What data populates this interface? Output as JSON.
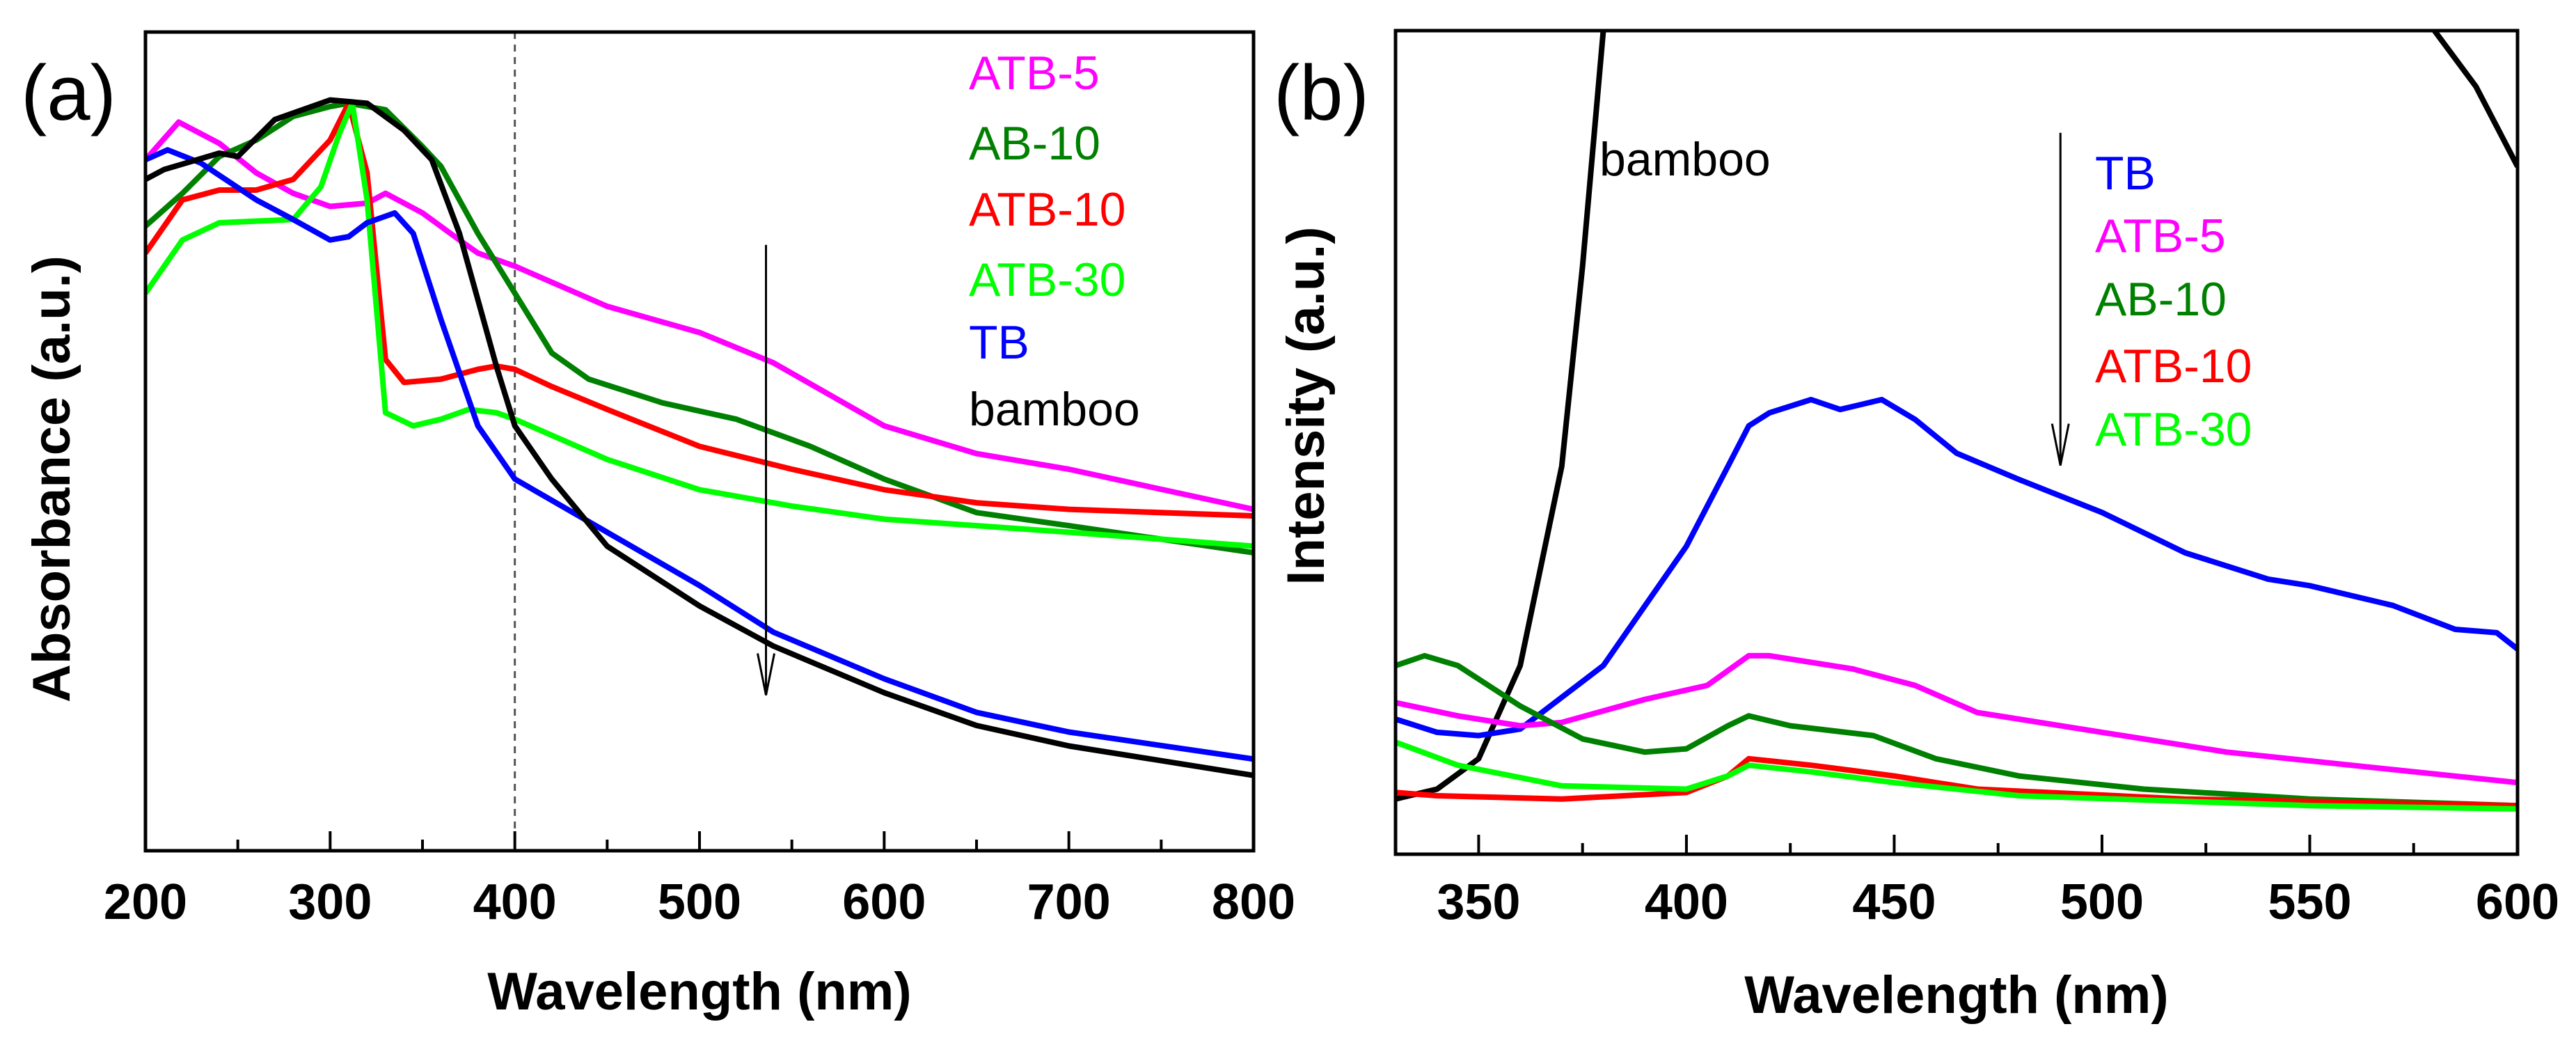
{
  "chart_data": [
    {
      "type": "line",
      "panel_label": "(a)",
      "xlabel": "Wavelength (nm)",
      "ylabel": "Absorbance (a.u.)",
      "xlim": [
        200,
        800
      ],
      "ylim": [
        0,
        100
      ],
      "xticks": [
        "200",
        "300",
        "400",
        "500",
        "600",
        "700",
        "800"
      ],
      "grid": false,
      "reference_line_x": 400,
      "arrow": {
        "x": 536,
        "y_from": 74,
        "y_to": 19
      },
      "legend_placement": "top-right",
      "series": [
        {
          "name": "ATB-5",
          "color": "#ff00ff",
          "x": [
            200,
            218,
            240,
            260,
            280,
            300,
            320,
            330,
            350,
            370,
            380,
            400,
            450,
            500,
            540,
            600,
            650,
            700,
            800
          ],
          "y": [
            84.4,
            89,
            86.4,
            82.8,
            80.3,
            78.7,
            79.1,
            80.3,
            77.9,
            74.6,
            73,
            71.4,
            66.5,
            63.3,
            59.6,
            51.9,
            48.5,
            46.6,
            41.7
          ]
        },
        {
          "name": "AB-10",
          "color": "#008000",
          "x": [
            200,
            220,
            240,
            260,
            280,
            300,
            310,
            330,
            350,
            360,
            380,
            400,
            420,
            440,
            480,
            520,
            560,
            600,
            650,
            700,
            800
          ],
          "y": [
            76.3,
            80.3,
            84.8,
            86.8,
            89.7,
            90.9,
            91.3,
            90.5,
            86,
            83.6,
            75.4,
            68.1,
            60.8,
            57.6,
            54.7,
            52.7,
            49.4,
            45.4,
            41.3,
            39.7,
            36.4
          ]
        },
        {
          "name": "ATB-10",
          "color": "#ff0000",
          "x": [
            200,
            220,
            240,
            260,
            280,
            300,
            310,
            320,
            330,
            340,
            360,
            380,
            390,
            400,
            420,
            450,
            500,
            550,
            600,
            650,
            700,
            800
          ],
          "y": [
            73,
            79.5,
            80.7,
            80.7,
            82,
            86.8,
            91.3,
            82.8,
            60,
            57.2,
            57.6,
            58.8,
            59.2,
            58.8,
            56.7,
            53.9,
            49.4,
            46.6,
            44.1,
            42.5,
            41.7,
            40.9
          ]
        },
        {
          "name": "ATB-30",
          "color": "#00ff00",
          "x": [
            200,
            220,
            240,
            280,
            295,
            305,
            312,
            320,
            330,
            345,
            360,
            375,
            390,
            400,
            450,
            500,
            550,
            600,
            700,
            800
          ],
          "y": [
            68.1,
            74.6,
            76.7,
            77.1,
            81.1,
            87.6,
            91.3,
            79.5,
            53.5,
            51.9,
            52.7,
            53.9,
            53.5,
            52.7,
            47.8,
            44.1,
            42.1,
            40.5,
            38.9,
            37.2
          ]
        },
        {
          "name": "TB",
          "color": "#0000ff",
          "x": [
            200,
            212,
            230,
            260,
            280,
            300,
            310,
            320,
            335,
            345,
            360,
            380,
            400,
            450,
            500,
            540,
            600,
            650,
            700,
            800
          ],
          "y": [
            84.4,
            85.6,
            84,
            79.5,
            77.1,
            74.6,
            75,
            76.7,
            77.9,
            75.4,
            64.9,
            51.9,
            45.4,
            38.9,
            32.4,
            26.7,
            21,
            16.9,
            14.5,
            11.2
          ]
        },
        {
          "name": "bamboo",
          "color": "#000000",
          "x": [
            200,
            210,
            240,
            250,
            270,
            300,
            320,
            340,
            355,
            370,
            390,
            400,
            420,
            450,
            500,
            540,
            600,
            650,
            700,
            800
          ],
          "y": [
            82,
            83.2,
            85.2,
            84.8,
            89.3,
            91.7,
            91.3,
            88,
            84.4,
            75.4,
            59.2,
            51.9,
            45.4,
            37.2,
            29.9,
            25,
            19.3,
            15.3,
            12.8,
            9.2
          ]
        }
      ]
    },
    {
      "type": "line",
      "panel_label": "(b)",
      "xlabel": "Wavelength (nm)",
      "ylabel": "Intensity (a.u.)",
      "xlim": [
        330,
        600
      ],
      "ylim": [
        0,
        100
      ],
      "xticks": [
        "350",
        "400",
        "450",
        "500",
        "550",
        "600"
      ],
      "grid": false,
      "arrow": {
        "x": 490,
        "y_from": 87.6,
        "y_to": 47.2
      },
      "bamboo_label": "bamboo",
      "legend_placement": "top-right",
      "series": [
        {
          "name": "bamboo",
          "color": "#000000",
          "x": [
            330,
            340,
            350,
            360,
            370,
            375,
            380,
            384
          ],
          "y": [
            6.7,
            7.9,
            11.6,
            22.9,
            47.1,
            71.4,
            100,
            115
          ]
        },
        {
          "name": "bamboo-tail",
          "color": "#000000",
          "x": [
            578,
            580,
            590,
            600
          ],
          "y": [
            105,
            100,
            93.2,
            83.5
          ]
        },
        {
          "name": "TB",
          "color": "#0000ff",
          "x": [
            330,
            340,
            350,
            360,
            380,
            400,
            410,
            415,
            420,
            430,
            437,
            447,
            455,
            465,
            480,
            500,
            520,
            540,
            550,
            570,
            585,
            595,
            600
          ],
          "y": [
            16.4,
            14.8,
            14.4,
            15.2,
            22.9,
            37.4,
            47.1,
            52,
            53.6,
            55.2,
            54,
            55.2,
            52.8,
            48.7,
            45.5,
            41.5,
            36.6,
            33.4,
            32.6,
            30.2,
            27.3,
            26.9,
            24.9
          ]
        },
        {
          "name": "ATB-5",
          "color": "#ff00ff",
          "x": [
            330,
            345,
            360,
            370,
            390,
            405,
            415,
            420,
            440,
            455,
            470,
            500,
            530,
            560,
            600
          ],
          "y": [
            18.4,
            16.8,
            15.6,
            16,
            18.8,
            20.5,
            24.1,
            24.1,
            22.5,
            20.5,
            17.2,
            14.8,
            12.4,
            10.8,
            8.7
          ]
        },
        {
          "name": "AB-10",
          "color": "#008000",
          "x": [
            330,
            337,
            345,
            360,
            375,
            390,
            400,
            410,
            415,
            425,
            445,
            460,
            480,
            510,
            550,
            600
          ],
          "y": [
            22.9,
            24.1,
            22.9,
            18,
            14,
            12.4,
            12.8,
            15.6,
            16.8,
            15.6,
            14.4,
            11.6,
            9.5,
            7.9,
            6.7,
            5.9
          ]
        },
        {
          "name": "ATB-10",
          "color": "#ff0000",
          "x": [
            330,
            340,
            370,
            400,
            410,
            415,
            430,
            450,
            470,
            520,
            600
          ],
          "y": [
            7.5,
            7.1,
            6.7,
            7.5,
            9.5,
            11.6,
            10.8,
            9.5,
            7.9,
            6.7,
            5.9
          ]
        },
        {
          "name": "ATB-30",
          "color": "#00ff00",
          "x": [
            330,
            345,
            370,
            400,
            410,
            415,
            430,
            450,
            480,
            550,
            600
          ],
          "y": [
            13.6,
            10.8,
            8.3,
            7.9,
            9.5,
            10.8,
            10,
            8.7,
            7.1,
            5.9,
            5.5
          ]
        }
      ],
      "legend": [
        "TB",
        "ATB-5",
        "AB-10",
        "ATB-10",
        "ATB-30"
      ]
    }
  ],
  "legend_a": [
    "ATB-5",
    "AB-10",
    "ATB-10",
    "ATB-30",
    "TB",
    "bamboo"
  ]
}
